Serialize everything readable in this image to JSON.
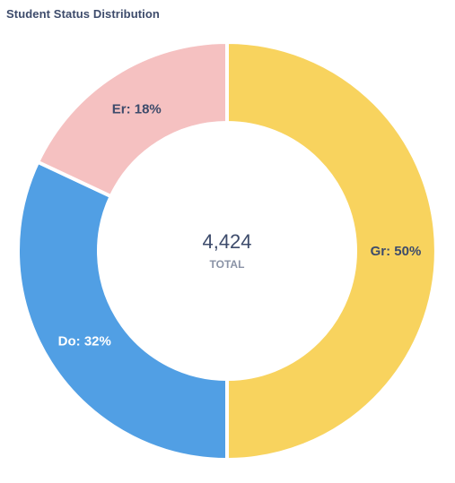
{
  "chart_data": {
    "type": "pie",
    "title": "Student Status Distribution",
    "categories": [
      "Gr",
      "Do",
      "Er"
    ],
    "values": [
      50,
      32,
      18
    ],
    "unit": "%",
    "colors": [
      "#f8d35e",
      "#519fe4",
      "#f5c1c1"
    ],
    "label_colors": [
      "#3d4b6b",
      "#ffffff",
      "#3d4b6b"
    ],
    "start_angle_deg": 0,
    "direction": "clockwise",
    "hole": "donut",
    "center": {
      "value": "4,424",
      "caption": "TOTAL"
    }
  }
}
